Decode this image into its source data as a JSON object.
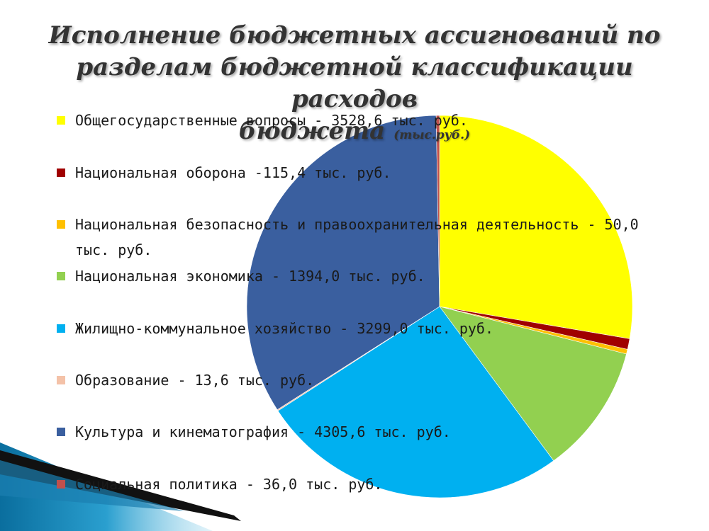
{
  "title": {
    "line1": "Исполнение бюджетных ассигнований по",
    "line2": "разделам бюджетной классификации расходов",
    "line3": "бюджета",
    "unit": "(тыс.руб.)"
  },
  "chart_data": {
    "type": "pie",
    "slices": [
      {
        "label": "Общегосударственные вопросы - 3528,6 тыс. руб.",
        "value": 3528.6,
        "color": "#ffff00"
      },
      {
        "label": "Национальная оборона -115,4 тыс. руб.",
        "value": 115.4,
        "color": "#a00000"
      },
      {
        "label": "Национальная безопасность и правоохранительная деятельность - 50,0 тыс. руб.",
        "value": 50.0,
        "color": "#ffc000"
      },
      {
        "label": "Национальная экономика - 1394,0 тыс. руб.",
        "value": 1394.0,
        "color": "#92d050"
      },
      {
        "label": "Жилищно-коммунальное хозяйство - 3299,0 тыс. руб.",
        "value": 3299.0,
        "color": "#00b0f0"
      },
      {
        "label": "Образование - 13,6 тыс. руб.",
        "value": 13.6,
        "color": "#f4c2a8"
      },
      {
        "label": "Культура и кинематография - 4305,6 тыс. руб.",
        "value": 4305.6,
        "color": "#3a5f9f"
      },
      {
        "label": "Социальная политика - 36,0 тыс. руб.",
        "value": 36.0,
        "color": "#c0504d"
      }
    ],
    "legend_position": "left"
  }
}
